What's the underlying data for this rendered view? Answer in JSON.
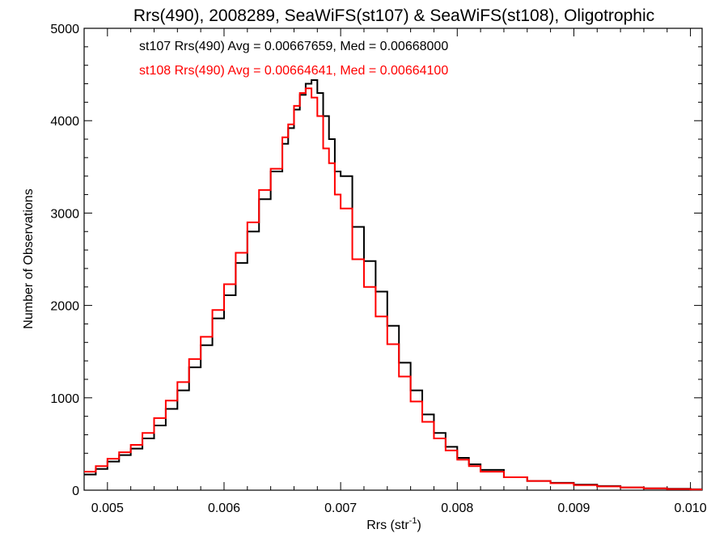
{
  "chart_data": {
    "type": "line",
    "style": "step-histogram",
    "title": "Rrs(490), 2008289, SeaWiFS(st107) & SeaWiFS(st108), Oligotrophic",
    "xlabel_main": "Rrs (str",
    "xlabel_sup": "-1",
    "xlabel_tail": ")",
    "ylabel": "Number of Observations",
    "xlim": [
      0.0048,
      0.0101
    ],
    "ylim": [
      0,
      5000
    ],
    "grid": false,
    "legend_position": "top-left (inside plot)",
    "x_ticks": [
      {
        "value": 0.005,
        "label": "0.005"
      },
      {
        "value": 0.006,
        "label": "0.006"
      },
      {
        "value": 0.007,
        "label": "0.007"
      },
      {
        "value": 0.008,
        "label": "0.008"
      },
      {
        "value": 0.009,
        "label": "0.009"
      },
      {
        "value": 0.01,
        "label": "0.010"
      }
    ],
    "y_ticks": [
      {
        "value": 0,
        "label": "0"
      },
      {
        "value": 1000,
        "label": "1000"
      },
      {
        "value": 2000,
        "label": "2000"
      },
      {
        "value": 3000,
        "label": "3000"
      },
      {
        "value": 4000,
        "label": "4000"
      },
      {
        "value": 5000,
        "label": "5000"
      }
    ],
    "series": [
      {
        "annotation": "st107 Rrs(490) Avg = 0.00667659, Med = 0.00668000",
        "color": "#000000",
        "x": [
          0.0048,
          0.0049,
          0.005,
          0.0051,
          0.0052,
          0.0053,
          0.0054,
          0.0055,
          0.0056,
          0.0057,
          0.0058,
          0.0059,
          0.006,
          0.0061,
          0.0062,
          0.0063,
          0.0064,
          0.0065,
          0.00655,
          0.0066,
          0.00665,
          0.0067,
          0.00675,
          0.0068,
          0.00685,
          0.0069,
          0.00695,
          0.007,
          0.0071,
          0.0072,
          0.0073,
          0.0074,
          0.0075,
          0.0076,
          0.0077,
          0.0078,
          0.0079,
          0.008,
          0.0081,
          0.0082,
          0.0084,
          0.0086,
          0.0088,
          0.009,
          0.0092,
          0.0094,
          0.0096,
          0.0098,
          0.01,
          0.0101
        ],
        "y": [
          170,
          230,
          310,
          380,
          450,
          560,
          700,
          880,
          1080,
          1330,
          1570,
          1860,
          2110,
          2460,
          2800,
          3150,
          3450,
          3750,
          3920,
          4120,
          4280,
          4400,
          4440,
          4300,
          4050,
          3800,
          3450,
          3400,
          2850,
          2480,
          2150,
          1780,
          1380,
          1080,
          820,
          620,
          470,
          350,
          280,
          220,
          140,
          100,
          80,
          60,
          45,
          30,
          20,
          15,
          10,
          10
        ]
      },
      {
        "annotation": "st108 Rrs(490) Avg = 0.00664641, Med = 0.00664100",
        "color": "#ff0000",
        "x": [
          0.0048,
          0.0049,
          0.005,
          0.0051,
          0.0052,
          0.0053,
          0.0054,
          0.0055,
          0.0056,
          0.0057,
          0.0058,
          0.0059,
          0.006,
          0.0061,
          0.0062,
          0.0063,
          0.0064,
          0.0065,
          0.00655,
          0.0066,
          0.00665,
          0.0067,
          0.00675,
          0.0068,
          0.00685,
          0.0069,
          0.00695,
          0.007,
          0.0071,
          0.0072,
          0.0073,
          0.0074,
          0.0075,
          0.0076,
          0.0077,
          0.0078,
          0.0079,
          0.008,
          0.0081,
          0.0082,
          0.0084,
          0.0086,
          0.0088,
          0.009,
          0.0092,
          0.0094,
          0.0096,
          0.0098,
          0.01,
          0.0101
        ],
        "y": [
          200,
          260,
          340,
          410,
          490,
          620,
          780,
          970,
          1170,
          1420,
          1660,
          1950,
          2230,
          2570,
          2900,
          3250,
          3480,
          3820,
          3960,
          4160,
          4300,
          4350,
          4250,
          4050,
          3700,
          3540,
          3200,
          3050,
          2500,
          2200,
          1880,
          1580,
          1230,
          960,
          740,
          560,
          430,
          330,
          260,
          200,
          140,
          100,
          75,
          55,
          40,
          30,
          20,
          12,
          8,
          8
        ]
      }
    ]
  }
}
